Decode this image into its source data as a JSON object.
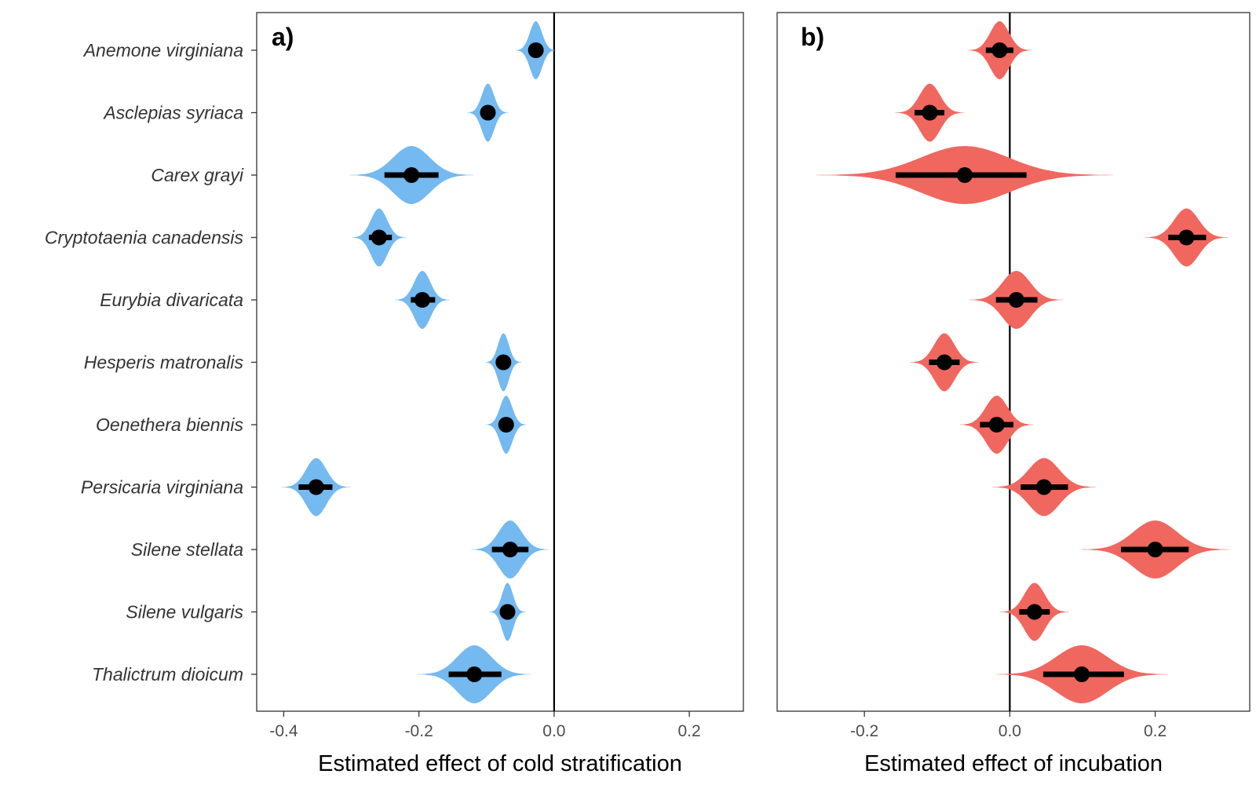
{
  "species": [
    "Anemone virginiana",
    "Asclepias syriaca",
    "Carex grayi",
    "Cryptotaenia canadensis",
    "Eurybia divaricata",
    "Hesperis matronalis",
    "Oenethera biennis",
    "Persicaria virginiana",
    "Silene stellata",
    "Silene vulgaris",
    "Thalictrum dioicum"
  ],
  "chart_data": [
    {
      "type": "violin",
      "panel_label": "a)",
      "xlabel": "Estimated effect of cold stratification",
      "xlim": [
        -0.44,
        0.28
      ],
      "xticks": [
        -0.4,
        -0.2,
        0.0,
        0.2
      ],
      "xtick_labels": [
        "-0.4",
        "-0.2",
        "0.0",
        "0.2"
      ],
      "reference_line": 0.0,
      "fill_color": "#74b9ef",
      "estimates": [
        {
          "species": "Anemone virginiana",
          "mean": -0.027,
          "ci_low": -0.031,
          "ci_high": -0.023,
          "sd": 0.009
        },
        {
          "species": "Asclepias syriaca",
          "mean": -0.098,
          "ci_low": -0.102,
          "ci_high": -0.094,
          "sd": 0.009
        },
        {
          "species": "Carex grayi",
          "mean": -0.211,
          "ci_low": -0.251,
          "ci_high": -0.171,
          "sd": 0.027
        },
        {
          "species": "Cryptotaenia canadensis",
          "mean": -0.259,
          "ci_low": -0.274,
          "ci_high": -0.24,
          "sd": 0.012
        },
        {
          "species": "Eurybia divaricata",
          "mean": -0.195,
          "ci_low": -0.212,
          "ci_high": -0.176,
          "sd": 0.012
        },
        {
          "species": "Hesperis matronalis",
          "mean": -0.075,
          "ci_low": -0.078,
          "ci_high": -0.07,
          "sd": 0.008
        },
        {
          "species": "Oenethera biennis",
          "mean": -0.071,
          "ci_low": -0.081,
          "ci_high": -0.061,
          "sd": 0.009
        },
        {
          "species": "Persicaria virginiana",
          "mean": -0.352,
          "ci_low": -0.378,
          "ci_high": -0.328,
          "sd": 0.015
        },
        {
          "species": "Silene stellata",
          "mean": -0.065,
          "ci_low": -0.092,
          "ci_high": -0.038,
          "sd": 0.017
        },
        {
          "species": "Silene vulgaris",
          "mean": -0.069,
          "ci_low": -0.077,
          "ci_high": -0.061,
          "sd": 0.008
        },
        {
          "species": "Thalictrum dioicum",
          "mean": -0.118,
          "ci_low": -0.156,
          "ci_high": -0.078,
          "sd": 0.025
        }
      ]
    },
    {
      "type": "violin",
      "panel_label": "b)",
      "xlabel": "Estimated effect of incubation",
      "xlim": [
        -0.32,
        0.33
      ],
      "xticks": [
        -0.2,
        0.0,
        0.2
      ],
      "xtick_labels": [
        "-0.2",
        "0.0",
        "0.2"
      ],
      "reference_line": 0.0,
      "fill_color": "#f0675f",
      "estimates": [
        {
          "species": "Anemone virginiana",
          "mean": -0.014,
          "ci_low": -0.033,
          "ci_high": 0.005,
          "sd": 0.013
        },
        {
          "species": "Asclepias syriaca",
          "mean": -0.11,
          "ci_low": -0.131,
          "ci_high": -0.09,
          "sd": 0.014
        },
        {
          "species": "Carex grayi",
          "mean": -0.062,
          "ci_low": -0.157,
          "ci_high": 0.023,
          "sd": 0.06
        },
        {
          "species": "Cryptotaenia canadensis",
          "mean": 0.243,
          "ci_low": 0.218,
          "ci_high": 0.27,
          "sd": 0.017
        },
        {
          "species": "Eurybia divaricata",
          "mean": 0.009,
          "ci_low": -0.019,
          "ci_high": 0.038,
          "sd": 0.019
        },
        {
          "species": "Hesperis matronalis",
          "mean": -0.09,
          "ci_low": -0.111,
          "ci_high": -0.069,
          "sd": 0.014
        },
        {
          "species": "Oenethera biennis",
          "mean": -0.018,
          "ci_low": -0.041,
          "ci_high": 0.005,
          "sd": 0.015
        },
        {
          "species": "Persicaria virginiana",
          "mean": 0.047,
          "ci_low": 0.015,
          "ci_high": 0.08,
          "sd": 0.021
        },
        {
          "species": "Silene stellata",
          "mean": 0.2,
          "ci_low": 0.153,
          "ci_high": 0.246,
          "sd": 0.03
        },
        {
          "species": "Silene vulgaris",
          "mean": 0.034,
          "ci_low": 0.013,
          "ci_high": 0.055,
          "sd": 0.014
        },
        {
          "species": "Thalictrum dioicum",
          "mean": 0.099,
          "ci_low": 0.046,
          "ci_high": 0.157,
          "sd": 0.035
        }
      ]
    }
  ]
}
